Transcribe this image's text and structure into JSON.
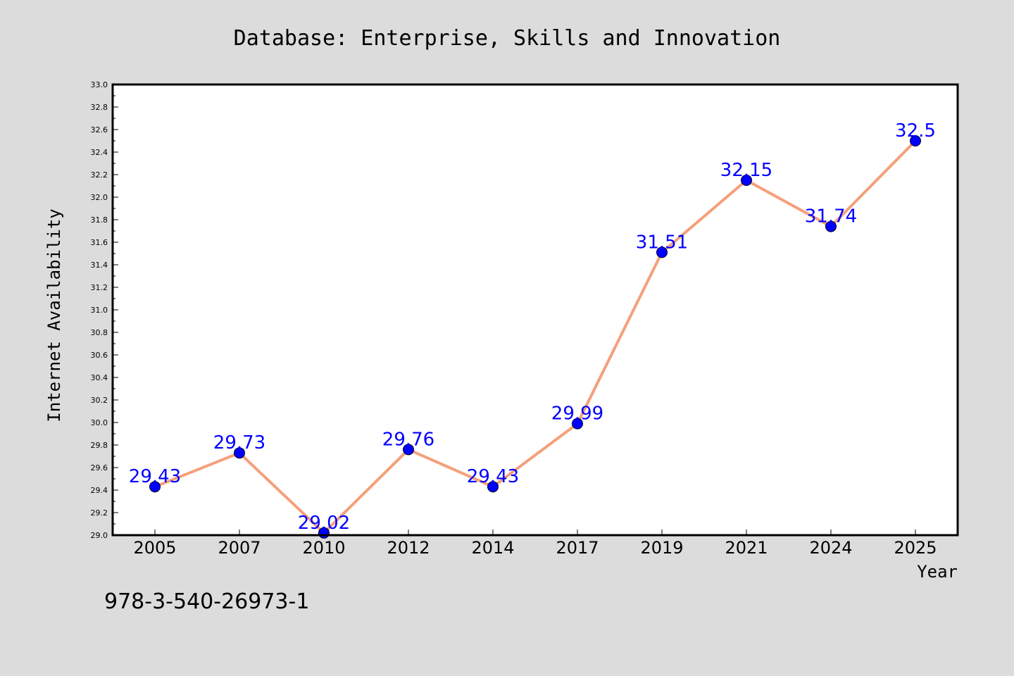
{
  "chart_data": {
    "type": "line",
    "title": "Database: Enterprise, Skills and Innovation",
    "xlabel": "Year",
    "ylabel": "Internet Availability",
    "categories": [
      "2005",
      "2007",
      "2010",
      "2012",
      "2014",
      "2017",
      "2019",
      "2021",
      "2024",
      "2025"
    ],
    "series": [
      {
        "values": [
          29.43,
          29.73,
          29.02,
          29.76,
          29.43,
          29.99,
          31.51,
          32.15,
          31.74,
          32.5
        ],
        "data_labels": [
          "29.43",
          "29.73",
          "29.02",
          "29.76",
          "29.43",
          "29.99",
          "31.51",
          "32.15",
          "31.74",
          "32.5"
        ],
        "line_color": "#f4a07a",
        "marker_color": "#0000ff"
      }
    ],
    "ylim": [
      29.0,
      33.0
    ],
    "yticks": [
      "29.0",
      "29.2",
      "29.4",
      "29.6",
      "29.8",
      "30.0",
      "30.2",
      "30.4",
      "30.6",
      "30.8",
      "31.0",
      "31.2",
      "31.4",
      "31.6",
      "31.8",
      "32.0",
      "32.2",
      "32.4",
      "32.6",
      "32.8",
      "33.0"
    ],
    "grid": false,
    "legend": "none"
  },
  "footer": {
    "text": "978-3-540-26973-1"
  },
  "colors": {
    "background": "#dcdcdc",
    "plot_area": "#ffffff",
    "data_label": "#0000ff"
  }
}
